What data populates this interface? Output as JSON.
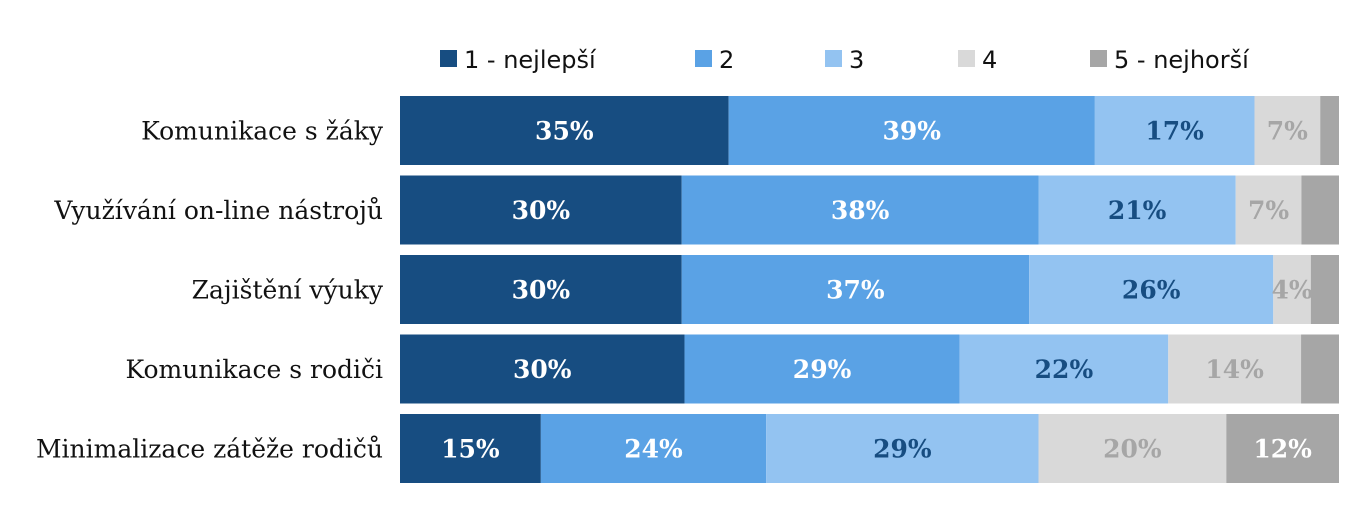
{
  "chart_data": {
    "type": "bar",
    "orientation": "horizontal",
    "stacked": true,
    "normalized": true,
    "legend_position": "top",
    "grid": false,
    "categories": [
      "Komunikace s žáky",
      "Využívání on-line nástrojů",
      "Zajištění výuky",
      "Komunikace s rodiči",
      "Minimalizace zátěže rodičů"
    ],
    "series": [
      {
        "name": "1 - nejlepší",
        "color": "#174D81",
        "label_color": "#FFFFFF",
        "values": [
          35,
          30,
          30,
          30,
          15
        ],
        "labels": [
          "35%",
          "30%",
          "30%",
          "30%",
          "15%"
        ]
      },
      {
        "name": "2",
        "color": "#5AA2E5",
        "label_color": "#FFFFFF",
        "values": [
          39,
          38,
          37,
          29,
          24
        ],
        "labels": [
          "39%",
          "38%",
          "37%",
          "29%",
          "24%"
        ]
      },
      {
        "name": "3",
        "color": "#93C3F1",
        "label_color": "#174D81",
        "values": [
          17,
          21,
          26,
          22,
          29
        ],
        "labels": [
          "17%",
          "21%",
          "26%",
          "22%",
          "29%"
        ]
      },
      {
        "name": "4",
        "color": "#D9D9D9",
        "label_color": "#A6A6A6",
        "values": [
          7,
          7,
          4,
          14,
          20
        ],
        "labels": [
          "7%",
          "7%",
          "4%",
          "14%",
          "20%"
        ]
      },
      {
        "name": "5 - nejhorší",
        "color": "#A6A6A6",
        "label_color": "#FFFFFF",
        "values": [
          2,
          4,
          3,
          4,
          12
        ],
        "labels": [
          "",
          "",
          "",
          "",
          "12%"
        ]
      }
    ]
  }
}
